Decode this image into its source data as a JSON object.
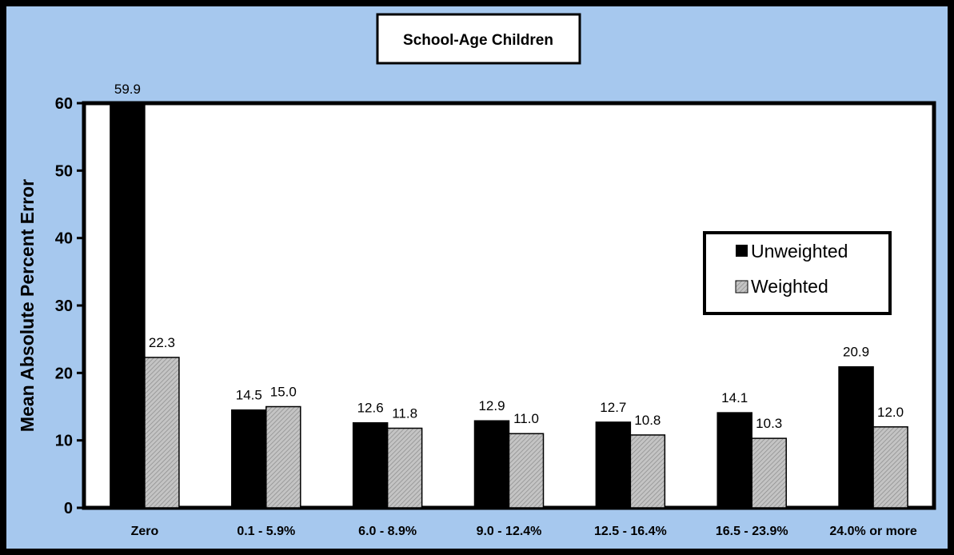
{
  "colors": {
    "background": "#a6c8ee",
    "plot_area": "#ffffff",
    "unweighted": "#000000",
    "weighted": "#b8b8b8",
    "border": "#000000"
  },
  "chart_data": {
    "type": "bar",
    "title": "School-Age Children",
    "xlabel": "",
    "ylabel": "Mean Absolute Percent Error",
    "ylim": [
      0,
      60
    ],
    "yticks": [
      0,
      10,
      20,
      30,
      40,
      50,
      60
    ],
    "grid": false,
    "legend_position": "right",
    "categories": [
      "Zero",
      "0.1 - 5.9%",
      "6.0 - 8.9%",
      "9.0 - 12.4%",
      "12.5 - 16.4%",
      "16.5 - 23.9%",
      "24.0% or more"
    ],
    "series": [
      {
        "name": "Unweighted",
        "values": [
          59.9,
          14.5,
          12.6,
          12.9,
          12.7,
          14.1,
          20.9
        ],
        "labels": [
          "59.9",
          "14.5",
          "12.6",
          "12.9",
          "12.7",
          "14.1",
          "20.9"
        ]
      },
      {
        "name": "Weighted",
        "values": [
          22.3,
          15.0,
          11.8,
          11.0,
          10.8,
          10.3,
          12.0
        ],
        "labels": [
          "22.3",
          "15.0",
          "11.8",
          "11.0",
          "10.8",
          "10.3",
          "12.0"
        ]
      }
    ]
  }
}
